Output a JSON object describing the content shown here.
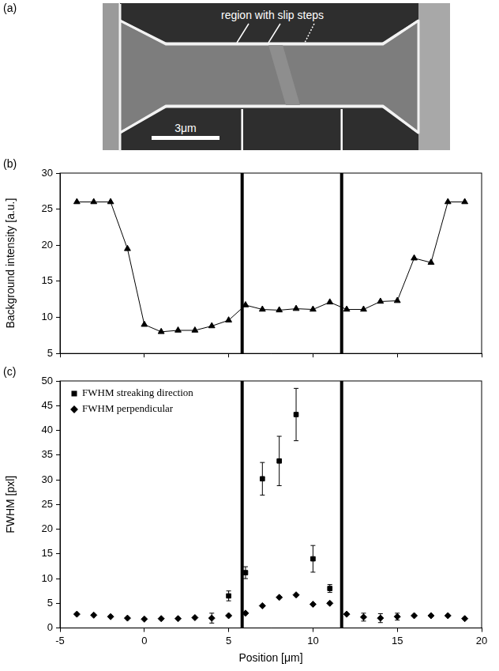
{
  "image_panel": {
    "panel": "(a)",
    "annotation": "region with slip steps",
    "scale_bar": "3μm"
  },
  "chart_data": [
    {
      "type": "line",
      "panel": "(b)",
      "y_label": "Background intensity [a.u.]",
      "x": [
        -4,
        -3,
        -2,
        -1,
        0,
        1,
        2,
        3,
        4,
        5,
        6,
        7,
        8,
        9,
        10,
        11,
        12,
        13,
        14,
        15,
        16,
        17,
        18,
        19
      ],
      "values": [
        26,
        26,
        26,
        19.5,
        9,
        8,
        8.2,
        8.2,
        8.8,
        9.6,
        11.7,
        11.1,
        11.0,
        11.2,
        11.1,
        12.1,
        11.1,
        11.1,
        12.2,
        12.3,
        18.2,
        17.6,
        26,
        26
      ],
      "color": "#000000",
      "marker": "triangle",
      "xlim": [
        -5,
        20
      ],
      "xticks": [
        -5,
        0,
        5,
        10,
        15,
        20
      ],
      "ylim": [
        5,
        30
      ],
      "yticks": [
        5,
        10,
        15,
        20,
        25,
        30
      ],
      "vlines": [
        5.8,
        11.7
      ],
      "grid": false,
      "tick_labels": "y"
    },
    {
      "type": "scatter",
      "panel": "(c)",
      "x_label": "Position [μm]",
      "y_label": "FWHM [pxl]",
      "x": [
        -4,
        -3,
        -2,
        -1,
        0,
        1,
        2,
        3,
        4,
        5,
        6,
        7,
        8,
        9,
        10,
        11,
        12,
        13,
        14,
        15,
        16,
        17,
        18,
        19
      ],
      "series": [
        {
          "name": "FWHM streaking direction",
          "color": "#000000",
          "marker": "square",
          "values": [
            null,
            null,
            null,
            null,
            null,
            null,
            null,
            null,
            null,
            6.5,
            11.2,
            30.2,
            33.8,
            43.2,
            14,
            8,
            null,
            null,
            null,
            null,
            null,
            null,
            null,
            null
          ],
          "errors": [
            null,
            null,
            null,
            null,
            null,
            null,
            null,
            null,
            null,
            1,
            1.2,
            3.3,
            5,
            5.3,
            2.7,
            0.8,
            null,
            null,
            null,
            null,
            null,
            null,
            null,
            null
          ]
        },
        {
          "name": "FWHM perpendicular",
          "color": "#000000",
          "marker": "diamond",
          "values": [
            2.8,
            2.6,
            2.3,
            2.0,
            1.8,
            1.9,
            1.9,
            2.1,
            2.0,
            2.5,
            3.0,
            4.5,
            6.2,
            6.7,
            4.8,
            5.0,
            2.8,
            2.2,
            2.0,
            2.3,
            2.5,
            2.5,
            2.5,
            1.9
          ],
          "errors": [
            null,
            null,
            null,
            null,
            null,
            null,
            null,
            null,
            1.0,
            null,
            null,
            null,
            null,
            null,
            null,
            null,
            null,
            0.8,
            0.9,
            0.7,
            null,
            null,
            null,
            null
          ]
        }
      ],
      "xlim": [
        -5,
        20
      ],
      "xticks": [
        -5,
        0,
        5,
        10,
        15,
        20
      ],
      "ylim": [
        0,
        50
      ],
      "yticks": [
        0,
        5,
        10,
        15,
        20,
        25,
        30,
        35,
        40,
        45,
        50
      ],
      "vlines": [
        5.8,
        11.7
      ],
      "legend": "upper left",
      "grid": false
    }
  ]
}
